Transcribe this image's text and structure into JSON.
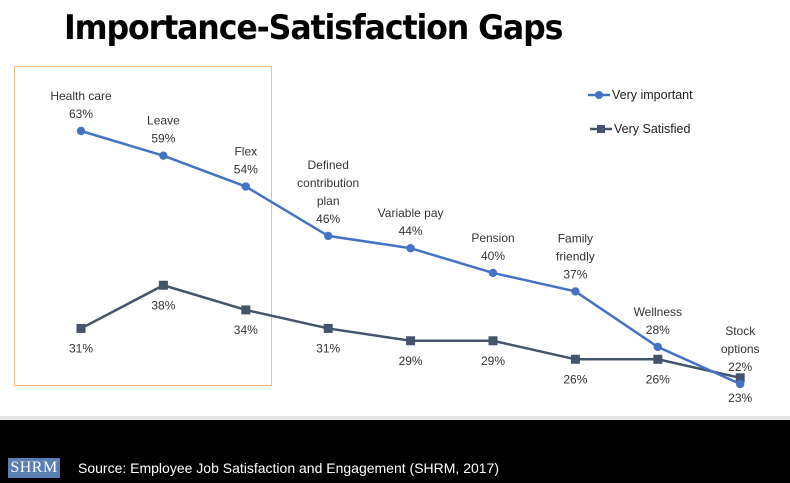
{
  "page": {
    "title": "Importance-Satisfaction Gaps",
    "source": "Source: Employee Job Satisfaction and Engagement (SHRM, 2017)",
    "logo_text": "SHRM",
    "highlight_color": "#f6b98a"
  },
  "chart_data": {
    "type": "line",
    "title": "Importance-Satisfaction Gaps",
    "xlabel": "",
    "ylabel": "",
    "categories": [
      "Health care",
      "Leave",
      "Flex",
      "Defined contribution plan",
      "Variable pay",
      "Pension",
      "Family friendly",
      "Wellness",
      "Stock options"
    ],
    "category_label_lines": [
      [
        "Health care"
      ],
      [
        "Leave"
      ],
      [
        "Flex"
      ],
      [
        "Defined",
        "contribution",
        "plan"
      ],
      [
        "Variable pay"
      ],
      [
        "Pension"
      ],
      [
        "Family",
        "friendly"
      ],
      [
        "Wellness"
      ],
      [
        "Stock",
        "options"
      ]
    ],
    "series": [
      {
        "name": "Very important",
        "values": [
          63,
          59,
          54,
          46,
          44,
          40,
          37,
          28,
          22
        ],
        "color": "#4472c4",
        "marker": "circle",
        "labels": [
          "63%",
          "59%",
          "54%",
          "46%",
          "44%",
          "40%",
          "37%",
          "28%",
          "22%"
        ]
      },
      {
        "name": "Very Satisfied",
        "values": [
          31,
          38,
          34,
          31,
          29,
          29,
          26,
          26,
          23
        ],
        "color": "#44546a",
        "marker": "square",
        "labels": [
          "31%",
          "38%",
          "34%",
          "31%",
          "29%",
          "29%",
          "26%",
          "26%",
          "23%"
        ]
      }
    ],
    "unit": "%",
    "axes_visible": false,
    "grid": false,
    "legend": "top-right",
    "highlighted_categories": [
      "Health care",
      "Leave",
      "Flex"
    ]
  }
}
